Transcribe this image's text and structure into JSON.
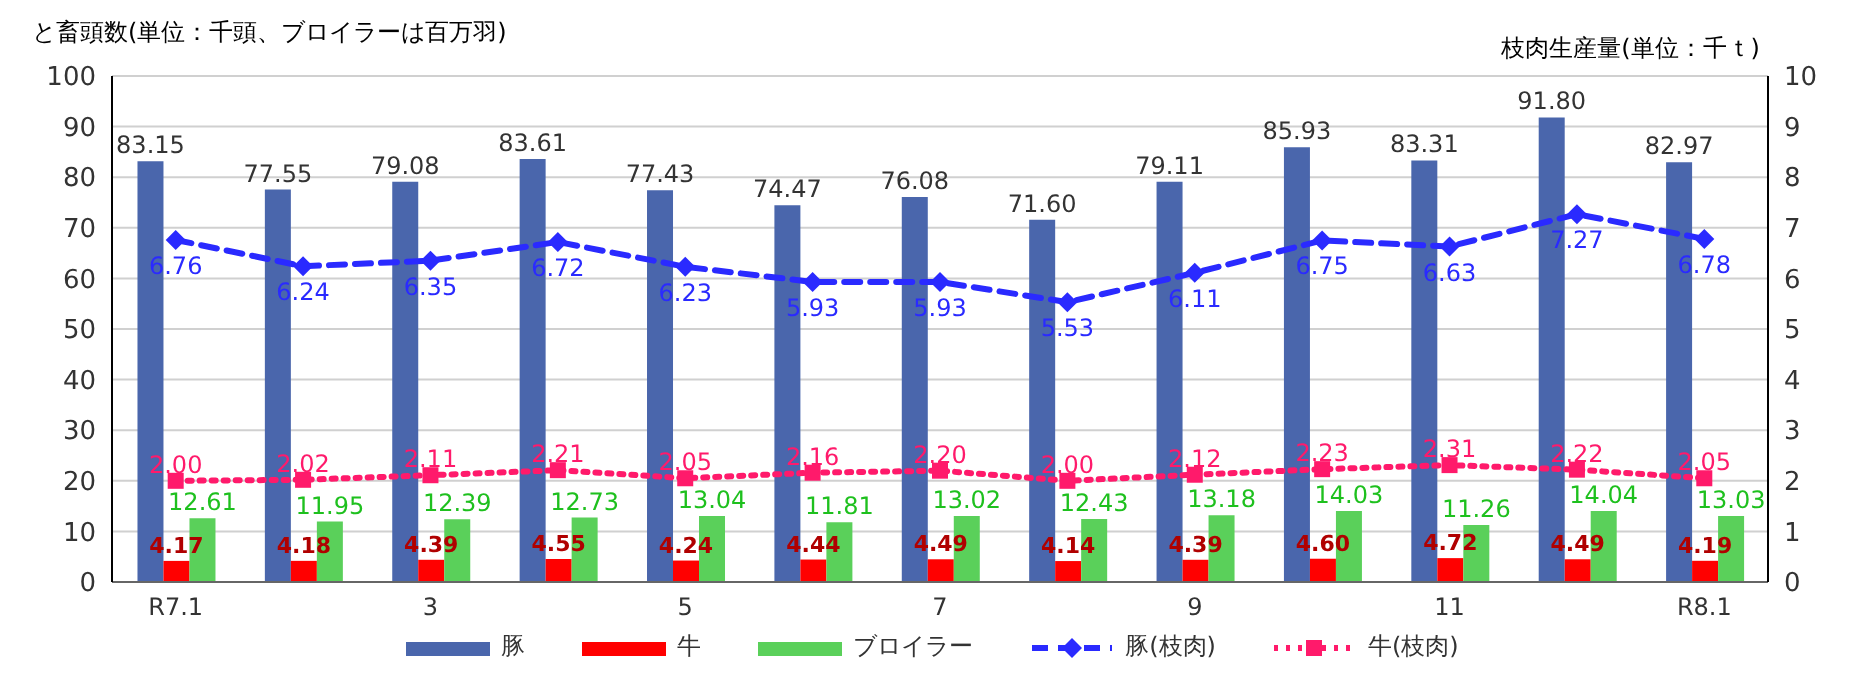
{
  "chart_data": {
    "type": "bar",
    "ylabel": "と畜頭数(単位：千頭、ブロイラーは百万羽)",
    "y2label": "枝肉生産量(単位：千ｔ)",
    "categories": [
      "R7.1",
      null,
      "3",
      null,
      "5",
      null,
      "7",
      null,
      "9",
      null,
      "11",
      null,
      "R8.1"
    ],
    "series": [
      {
        "name": "豚",
        "color": "#4a66ac",
        "values": [
          83.15,
          77.55,
          79.08,
          83.61,
          77.43,
          74.47,
          76.08,
          71.6,
          79.11,
          85.93,
          83.31,
          91.8,
          82.97
        ],
        "value_labels": [
          "83.15",
          "77.55",
          "79.08",
          "83.61",
          "77.43",
          "74.47",
          "76.08",
          "71.60",
          "79.11",
          "85.93",
          "83.31",
          "91.80",
          "82.97"
        ]
      },
      {
        "name": "牛",
        "color": "#ff0000",
        "values": [
          4.17,
          4.18,
          4.39,
          4.55,
          4.24,
          4.44,
          4.49,
          4.14,
          4.39,
          4.6,
          4.72,
          4.49,
          4.19
        ],
        "value_labels": [
          "4.17",
          "4.18",
          "4.39",
          "4.55",
          "4.24",
          "4.44",
          "4.49",
          "4.14",
          "4.39",
          "4.60",
          "4.72",
          "4.49",
          "4.19"
        ]
      },
      {
        "name": "ブロイラー",
        "color": "#5ad05a",
        "values": [
          12.61,
          11.95,
          12.39,
          12.73,
          13.04,
          11.81,
          13.02,
          12.43,
          13.18,
          14.03,
          11.26,
          14.04,
          13.03
        ],
        "value_labels": [
          "12.61",
          "11.95",
          "12.39",
          "12.73",
          "13.04",
          "11.81",
          "13.02",
          "12.43",
          "13.18",
          "14.03",
          "11.26",
          "14.04",
          "13.03"
        ]
      },
      {
        "name": "豚(枝肉)",
        "type": "line",
        "axis": "y2",
        "color": "#2a2aff",
        "line_style": "dashed",
        "marker": "diamond",
        "values": [
          6.76,
          6.24,
          6.35,
          6.72,
          6.23,
          5.93,
          5.93,
          5.53,
          6.11,
          6.75,
          6.63,
          7.27,
          6.78
        ],
        "value_labels": [
          "6.76",
          "6.24",
          "6.35",
          "6.72",
          "6.23",
          "5.93",
          "5.93",
          "5.53",
          "6.11",
          "6.75",
          "6.63",
          "7.27",
          "6.78"
        ]
      },
      {
        "name": "牛(枝肉)",
        "type": "line",
        "axis": "y2",
        "color": "#ff1a6b",
        "line_style": "dotted",
        "marker": "square",
        "values": [
          2.0,
          2.02,
          2.11,
          2.21,
          2.05,
          2.16,
          2.2,
          2.0,
          2.12,
          2.23,
          2.31,
          2.22,
          2.05
        ],
        "value_labels": [
          "2.00",
          "2.02",
          "2.11",
          "2.21",
          "2.05",
          "2.16",
          "2.20",
          "2.00",
          "2.12",
          "2.23",
          "2.31",
          "2.22",
          "2.05"
        ]
      }
    ],
    "ylim": [
      0,
      100
    ],
    "yticks": [
      0,
      10,
      20,
      30,
      40,
      50,
      60,
      70,
      80,
      90,
      100
    ],
    "y2lim": [
      0,
      10
    ],
    "y2ticks": [
      0,
      1,
      2,
      3,
      4,
      5,
      6,
      7,
      8,
      9,
      10
    ],
    "grid": "y",
    "legend": "bottom"
  }
}
